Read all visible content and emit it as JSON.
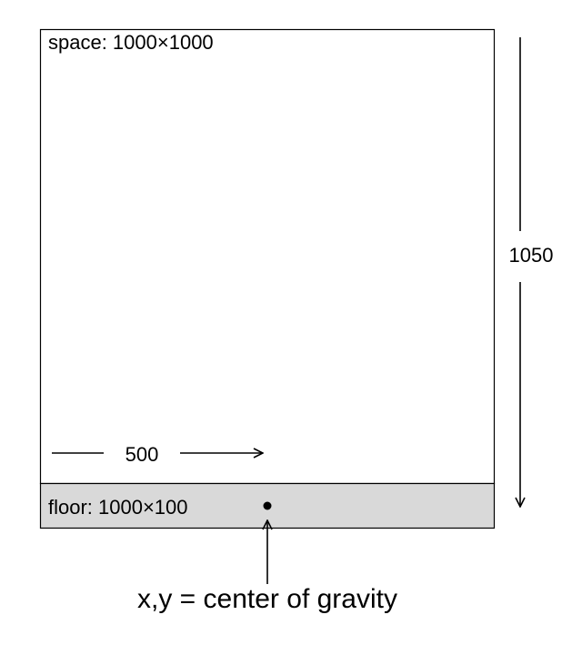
{
  "diagram": {
    "space_label": "space: 1000×1000",
    "floor_label": "floor: 1000×100",
    "width_label": "500",
    "height_label": "1050",
    "gravity_caption": "x,y = center of gravity"
  },
  "colors": {
    "floor_fill": "#d9d9d9",
    "space_fill": "#ffffff",
    "stroke": "#000000"
  }
}
